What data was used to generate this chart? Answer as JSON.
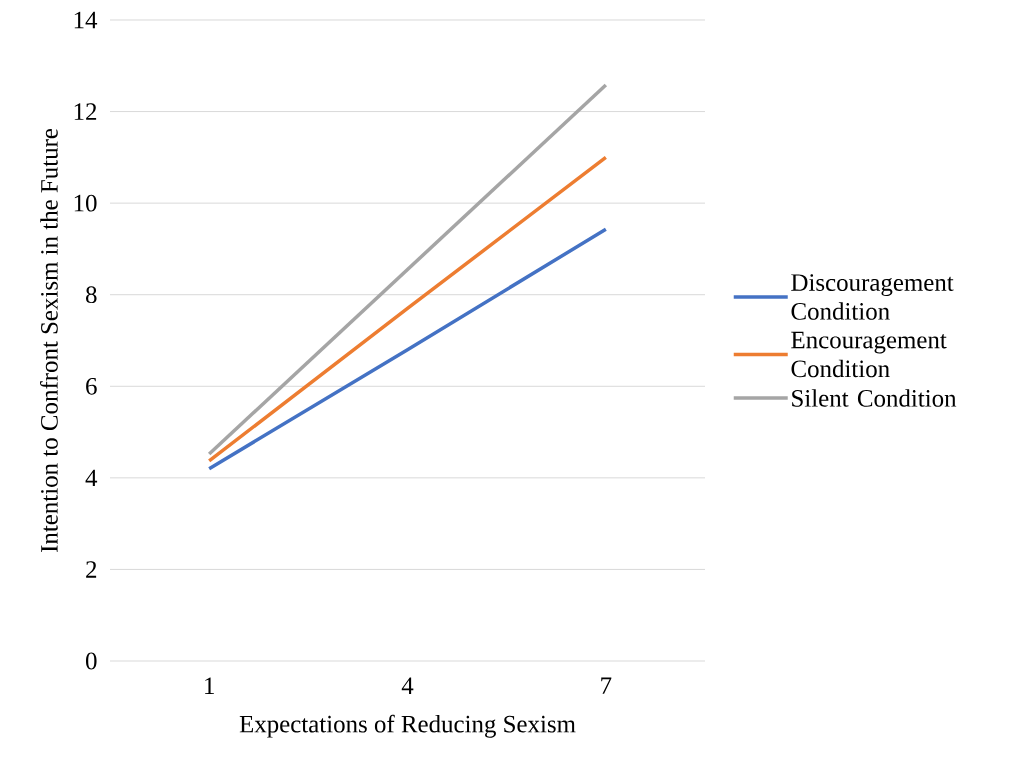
{
  "chart_data": {
    "type": "line",
    "xlabel": "Expectations of Reducing Sexism",
    "ylabel": "Intention to Confront Sexism in the Future",
    "categories": [
      "1",
      "4",
      "7"
    ],
    "series": [
      {
        "name": "Discouragement Condition",
        "color": "#4472c4",
        "values": [
          4.2,
          6.8,
          9.43
        ]
      },
      {
        "name": "Encouragement Condition",
        "color": "#ed7d31",
        "values": [
          4.37,
          7.7,
          11.0
        ]
      },
      {
        "name": "Silent Condition",
        "color": "#a5a5a5",
        "values": [
          4.52,
          8.55,
          12.58
        ]
      }
    ],
    "ylim": [
      0,
      14
    ],
    "yticks": [
      0,
      2,
      4,
      6,
      8,
      10,
      12,
      14
    ],
    "grid": "y",
    "legend": "right",
    "marker": "none",
    "line_style": "solid"
  }
}
